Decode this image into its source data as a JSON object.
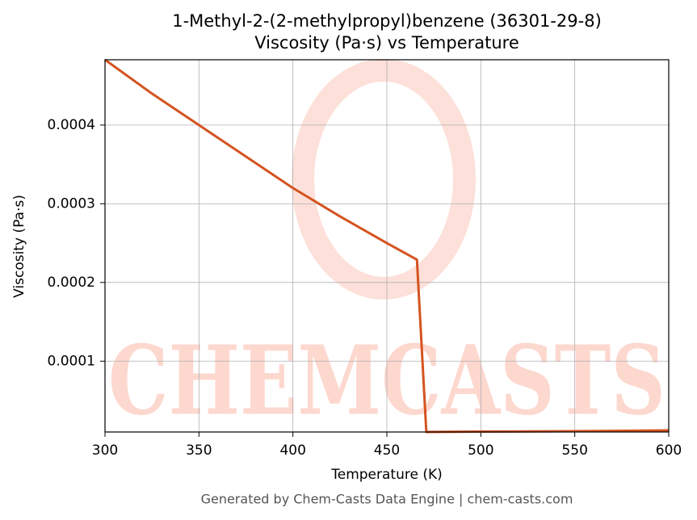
{
  "chart_data": {
    "type": "line",
    "title": "1-Methyl-2-(2-methylpropyl)benzene (36301-29-8)",
    "subtitle": "Viscosity (Pa·s) vs Temperature",
    "x_label": "Temperature (K)",
    "y_label": "Viscosity (Pa·s)",
    "watermark": "CHEMCASTS",
    "footer": "Generated by Chem-Casts Data Engine | chem-casts.com",
    "x": [
      300,
      325,
      350,
      375,
      400,
      425,
      450,
      466,
      471,
      500,
      550,
      600
    ],
    "series": [
      {
        "name": "Viscosity",
        "color": "#d4531f",
        "values": [
          0.000483,
          0.00044,
          0.0004,
          0.00036,
          0.00032,
          0.000284,
          0.00025,
          0.000229,
          1e-05,
          1.05e-05,
          1.1e-05,
          1.2e-05
        ]
      }
    ],
    "xlim": [
      300,
      600
    ],
    "xticks": [
      300,
      350,
      400,
      450,
      500,
      550,
      600
    ],
    "ylim": [
      1e-05,
      0.000483
    ],
    "yticks": [
      0.0001,
      0.0002,
      0.0003,
      0.0004
    ],
    "grid": true
  }
}
